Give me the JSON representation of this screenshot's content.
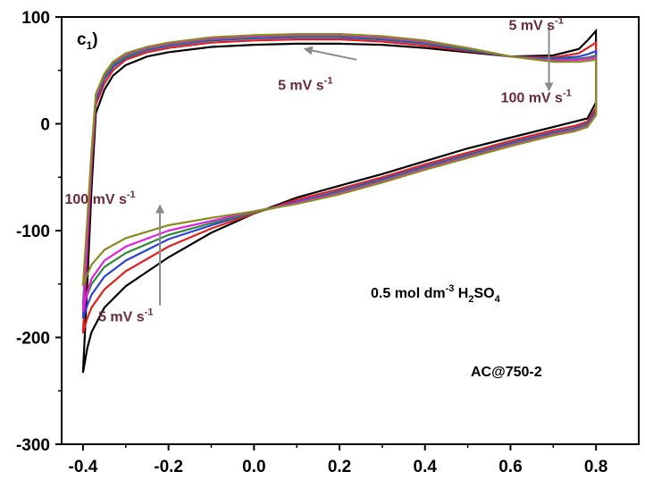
{
  "chart_data": {
    "type": "line",
    "panel_label": "c",
    "panel_label_sub": "1",
    "panel_label_suffix": ")",
    "xlim": [
      -0.45,
      0.9
    ],
    "ylim": [
      -300,
      100
    ],
    "x_ticks": [
      "-0.4",
      "-0.2",
      "0.0",
      "0.2",
      "0.4",
      "0.6",
      "0.8"
    ],
    "x_tick_values": [
      -0.4,
      -0.2,
      0.0,
      0.2,
      0.4,
      0.6,
      0.8
    ],
    "y_ticks": [
      "100",
      "0",
      "-100",
      "-200",
      "-300"
    ],
    "y_tick_values": [
      100,
      0,
      -100,
      -200,
      -300
    ],
    "xlabel": "",
    "ylabel": "",
    "grid": false,
    "series": [
      {
        "color": "#000000",
        "upper": [
          [
            -0.4,
            -233
          ],
          [
            -0.39,
            -150
          ],
          [
            -0.38,
            -60
          ],
          [
            -0.37,
            10
          ],
          [
            -0.35,
            32
          ],
          [
            -0.33,
            45
          ],
          [
            -0.3,
            55
          ],
          [
            -0.25,
            63
          ],
          [
            -0.2,
            67
          ],
          [
            -0.1,
            72
          ],
          [
            0.0,
            74
          ],
          [
            0.1,
            75
          ],
          [
            0.2,
            75
          ],
          [
            0.3,
            74
          ],
          [
            0.4,
            71
          ],
          [
            0.5,
            67
          ],
          [
            0.6,
            63
          ],
          [
            0.7,
            64
          ],
          [
            0.76,
            70
          ],
          [
            0.78,
            78
          ],
          [
            0.8,
            87
          ]
        ],
        "lower": [
          [
            0.8,
            87
          ],
          [
            0.8,
            20
          ],
          [
            0.78,
            5
          ],
          [
            0.75,
            2
          ],
          [
            0.7,
            -3
          ],
          [
            0.6,
            -13
          ],
          [
            0.5,
            -23
          ],
          [
            0.4,
            -35
          ],
          [
            0.3,
            -47
          ],
          [
            0.2,
            -58
          ],
          [
            0.1,
            -69
          ],
          [
            0.0,
            -84
          ],
          [
            -0.1,
            -102
          ],
          [
            -0.2,
            -125
          ],
          [
            -0.3,
            -152
          ],
          [
            -0.35,
            -172
          ],
          [
            -0.38,
            -195
          ],
          [
            -0.39,
            -210
          ],
          [
            -0.4,
            -233
          ]
        ]
      },
      {
        "color": "#e0201c",
        "upper": [
          [
            -0.4,
            -196
          ],
          [
            -0.39,
            -120
          ],
          [
            -0.38,
            -40
          ],
          [
            -0.37,
            18
          ],
          [
            -0.35,
            38
          ],
          [
            -0.33,
            50
          ],
          [
            -0.3,
            60
          ],
          [
            -0.25,
            67
          ],
          [
            -0.2,
            71
          ],
          [
            -0.1,
            76
          ],
          [
            0.0,
            78
          ],
          [
            0.1,
            79
          ],
          [
            0.2,
            79
          ],
          [
            0.3,
            77
          ],
          [
            0.4,
            73
          ],
          [
            0.5,
            68
          ],
          [
            0.6,
            63
          ],
          [
            0.7,
            62
          ],
          [
            0.76,
            66
          ],
          [
            0.78,
            71
          ],
          [
            0.8,
            76
          ]
        ],
        "lower": [
          [
            0.8,
            76
          ],
          [
            0.8,
            15
          ],
          [
            0.78,
            2
          ],
          [
            0.75,
            -2
          ],
          [
            0.7,
            -6
          ],
          [
            0.6,
            -16
          ],
          [
            0.5,
            -27
          ],
          [
            0.4,
            -38
          ],
          [
            0.3,
            -50
          ],
          [
            0.2,
            -61
          ],
          [
            0.1,
            -71
          ],
          [
            0.0,
            -84
          ],
          [
            -0.1,
            -98
          ],
          [
            -0.2,
            -115
          ],
          [
            -0.3,
            -138
          ],
          [
            -0.35,
            -155
          ],
          [
            -0.38,
            -172
          ],
          [
            -0.39,
            -182
          ],
          [
            -0.4,
            -196
          ]
        ]
      },
      {
        "color": "#2b43d6",
        "upper": [
          [
            -0.4,
            -182
          ],
          [
            -0.39,
            -110
          ],
          [
            -0.38,
            -35
          ],
          [
            -0.37,
            22
          ],
          [
            -0.35,
            42
          ],
          [
            -0.33,
            53
          ],
          [
            -0.3,
            62
          ],
          [
            -0.25,
            69
          ],
          [
            -0.2,
            73
          ],
          [
            -0.1,
            78
          ],
          [
            0.0,
            80
          ],
          [
            0.1,
            81
          ],
          [
            0.2,
            81
          ],
          [
            0.3,
            79
          ],
          [
            0.4,
            75
          ],
          [
            0.5,
            69
          ],
          [
            0.6,
            63
          ],
          [
            0.7,
            61
          ],
          [
            0.76,
            63
          ],
          [
            0.78,
            65
          ],
          [
            0.8,
            68
          ]
        ],
        "lower": [
          [
            0.8,
            68
          ],
          [
            0.8,
            12
          ],
          [
            0.78,
            0
          ],
          [
            0.75,
            -4
          ],
          [
            0.7,
            -8
          ],
          [
            0.6,
            -18
          ],
          [
            0.5,
            -29
          ],
          [
            0.4,
            -40
          ],
          [
            0.3,
            -52
          ],
          [
            0.2,
            -63
          ],
          [
            0.1,
            -73
          ],
          [
            0.0,
            -83
          ],
          [
            -0.1,
            -95
          ],
          [
            -0.2,
            -108
          ],
          [
            -0.3,
            -128
          ],
          [
            -0.35,
            -143
          ],
          [
            -0.38,
            -160
          ],
          [
            -0.39,
            -170
          ],
          [
            -0.4,
            -182
          ]
        ]
      },
      {
        "color": "#2e8b3a",
        "upper": [
          [
            -0.4,
            -170
          ],
          [
            -0.39,
            -100
          ],
          [
            -0.38,
            -30
          ],
          [
            -0.37,
            25
          ],
          [
            -0.35,
            44
          ],
          [
            -0.33,
            55
          ],
          [
            -0.3,
            63
          ],
          [
            -0.25,
            70
          ],
          [
            -0.2,
            74
          ],
          [
            -0.1,
            79
          ],
          [
            0.0,
            81
          ],
          [
            0.1,
            82
          ],
          [
            0.2,
            82
          ],
          [
            0.3,
            80
          ],
          [
            0.4,
            76
          ],
          [
            0.5,
            70
          ],
          [
            0.6,
            63
          ],
          [
            0.7,
            60
          ],
          [
            0.76,
            61
          ],
          [
            0.78,
            62
          ],
          [
            0.8,
            64
          ]
        ],
        "lower": [
          [
            0.8,
            64
          ],
          [
            0.8,
            10
          ],
          [
            0.78,
            -1
          ],
          [
            0.75,
            -5
          ],
          [
            0.7,
            -9
          ],
          [
            0.6,
            -19
          ],
          [
            0.5,
            -30
          ],
          [
            0.4,
            -41
          ],
          [
            0.3,
            -53
          ],
          [
            0.2,
            -64
          ],
          [
            0.1,
            -74
          ],
          [
            0.0,
            -83
          ],
          [
            -0.1,
            -93
          ],
          [
            -0.2,
            -104
          ],
          [
            -0.3,
            -121
          ],
          [
            -0.35,
            -134
          ],
          [
            -0.38,
            -150
          ],
          [
            -0.39,
            -160
          ],
          [
            -0.4,
            -170
          ]
        ]
      },
      {
        "color": "#e020e0",
        "upper": [
          [
            -0.4,
            -176
          ],
          [
            -0.39,
            -105
          ],
          [
            -0.38,
            -32
          ],
          [
            -0.37,
            26
          ],
          [
            -0.35,
            46
          ],
          [
            -0.33,
            57
          ],
          [
            -0.3,
            65
          ],
          [
            -0.25,
            71
          ],
          [
            -0.2,
            75
          ],
          [
            -0.1,
            80
          ],
          [
            0.0,
            82
          ],
          [
            0.1,
            83
          ],
          [
            0.2,
            83
          ],
          [
            0.3,
            81
          ],
          [
            0.4,
            77
          ],
          [
            0.5,
            71
          ],
          [
            0.6,
            63
          ],
          [
            0.7,
            59
          ],
          [
            0.76,
            60
          ],
          [
            0.78,
            61
          ],
          [
            0.8,
            62
          ]
        ],
        "lower": [
          [
            0.8,
            62
          ],
          [
            0.8,
            9
          ],
          [
            0.78,
            -2
          ],
          [
            0.75,
            -6
          ],
          [
            0.7,
            -10
          ],
          [
            0.6,
            -20
          ],
          [
            0.5,
            -31
          ],
          [
            0.4,
            -42
          ],
          [
            0.3,
            -54
          ],
          [
            0.2,
            -65
          ],
          [
            0.1,
            -74
          ],
          [
            0.0,
            -82
          ],
          [
            -0.1,
            -91
          ],
          [
            -0.2,
            -100
          ],
          [
            -0.3,
            -115
          ],
          [
            -0.35,
            -128
          ],
          [
            -0.38,
            -145
          ],
          [
            -0.39,
            -158
          ],
          [
            -0.4,
            -176
          ]
        ]
      },
      {
        "color": "#8a8a1e",
        "upper": [
          [
            -0.4,
            -152
          ],
          [
            -0.39,
            -90
          ],
          [
            -0.38,
            -25
          ],
          [
            -0.37,
            28
          ],
          [
            -0.35,
            47
          ],
          [
            -0.33,
            58
          ],
          [
            -0.3,
            66
          ],
          [
            -0.25,
            72
          ],
          [
            -0.2,
            76
          ],
          [
            -0.1,
            81
          ],
          [
            0.0,
            83
          ],
          [
            0.1,
            84
          ],
          [
            0.2,
            84
          ],
          [
            0.3,
            82
          ],
          [
            0.4,
            78
          ],
          [
            0.5,
            71
          ],
          [
            0.6,
            63
          ],
          [
            0.7,
            58
          ],
          [
            0.76,
            58
          ],
          [
            0.78,
            59
          ],
          [
            0.8,
            60
          ]
        ],
        "lower": [
          [
            0.8,
            60
          ],
          [
            0.8,
            8
          ],
          [
            0.78,
            -3
          ],
          [
            0.75,
            -7
          ],
          [
            0.7,
            -11
          ],
          [
            0.6,
            -21
          ],
          [
            0.5,
            -32
          ],
          [
            0.4,
            -43
          ],
          [
            0.3,
            -55
          ],
          [
            0.2,
            -66
          ],
          [
            0.1,
            -75
          ],
          [
            0.0,
            -82
          ],
          [
            -0.1,
            -88
          ],
          [
            -0.2,
            -95
          ],
          [
            -0.3,
            -107
          ],
          [
            -0.35,
            -118
          ],
          [
            -0.38,
            -132
          ],
          [
            -0.39,
            -141
          ],
          [
            -0.4,
            -152
          ]
        ]
      }
    ],
    "annotations": [
      {
        "text": "5 mV s",
        "sup": "-1",
        "x": 0.12,
        "y": 32,
        "style": "maroon"
      },
      {
        "text": "5 mV s",
        "sup": "-1",
        "x": 0.66,
        "y": 88,
        "style": "maroon"
      },
      {
        "text": "100 mV s",
        "sup": "-1",
        "x": 0.66,
        "y": 20,
        "style": "maroon"
      },
      {
        "text": "100 mV s",
        "sup": "-1",
        "x": -0.36,
        "y": -75,
        "style": "maroon"
      },
      {
        "text": "5 mV s",
        "sup": "-1",
        "x": -0.3,
        "y": -185,
        "style": "maroon"
      }
    ],
    "electrolyte": {
      "pre": "0.5 mol dm",
      "sup": "-3",
      "mid": " H",
      "sub1": "2",
      "mid2": "SO",
      "sub2": "4"
    },
    "sample": "AC@750-2",
    "arrows": [
      {
        "from": [
          0.24,
          60
        ],
        "to": [
          0.12,
          70
        ]
      },
      {
        "from": [
          0.69,
          91
        ],
        "to": [
          0.69,
          32
        ]
      },
      {
        "from": [
          -0.22,
          -170
        ],
        "to": [
          -0.22,
          -77
        ]
      }
    ]
  }
}
